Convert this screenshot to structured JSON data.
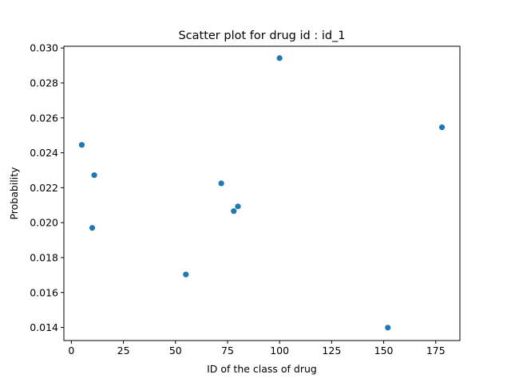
{
  "chart_data": {
    "type": "scatter",
    "title": "Scatter plot for drug id : id_1",
    "xlabel": "ID of the class of drug",
    "ylabel": "Probability",
    "xlim": [
      -3.6,
      186.6
    ],
    "ylim": [
      0.01325,
      0.0301
    ],
    "xticks": [
      0,
      25,
      50,
      75,
      100,
      125,
      150,
      175
    ],
    "xtick_labels": [
      "0",
      "25",
      "50",
      "75",
      "100",
      "125",
      "150",
      "175"
    ],
    "yticks": [
      0.014,
      0.016,
      0.018,
      0.02,
      0.022,
      0.024,
      0.026,
      0.028,
      0.03
    ],
    "ytick_labels": [
      "0.014",
      "0.016",
      "0.018",
      "0.020",
      "0.022",
      "0.024",
      "0.026",
      "0.028",
      "0.030"
    ],
    "grid": false,
    "marker_color": "#1f77b4",
    "points": [
      {
        "x": 5,
        "y": 0.02445
      },
      {
        "x": 10,
        "y": 0.0197
      },
      {
        "x": 11,
        "y": 0.02272
      },
      {
        "x": 55,
        "y": 0.01703
      },
      {
        "x": 72,
        "y": 0.02225
      },
      {
        "x": 78,
        "y": 0.02066
      },
      {
        "x": 80,
        "y": 0.02093
      },
      {
        "x": 100,
        "y": 0.02942
      },
      {
        "x": 152,
        "y": 0.01399
      },
      {
        "x": 178,
        "y": 0.02546
      }
    ]
  }
}
